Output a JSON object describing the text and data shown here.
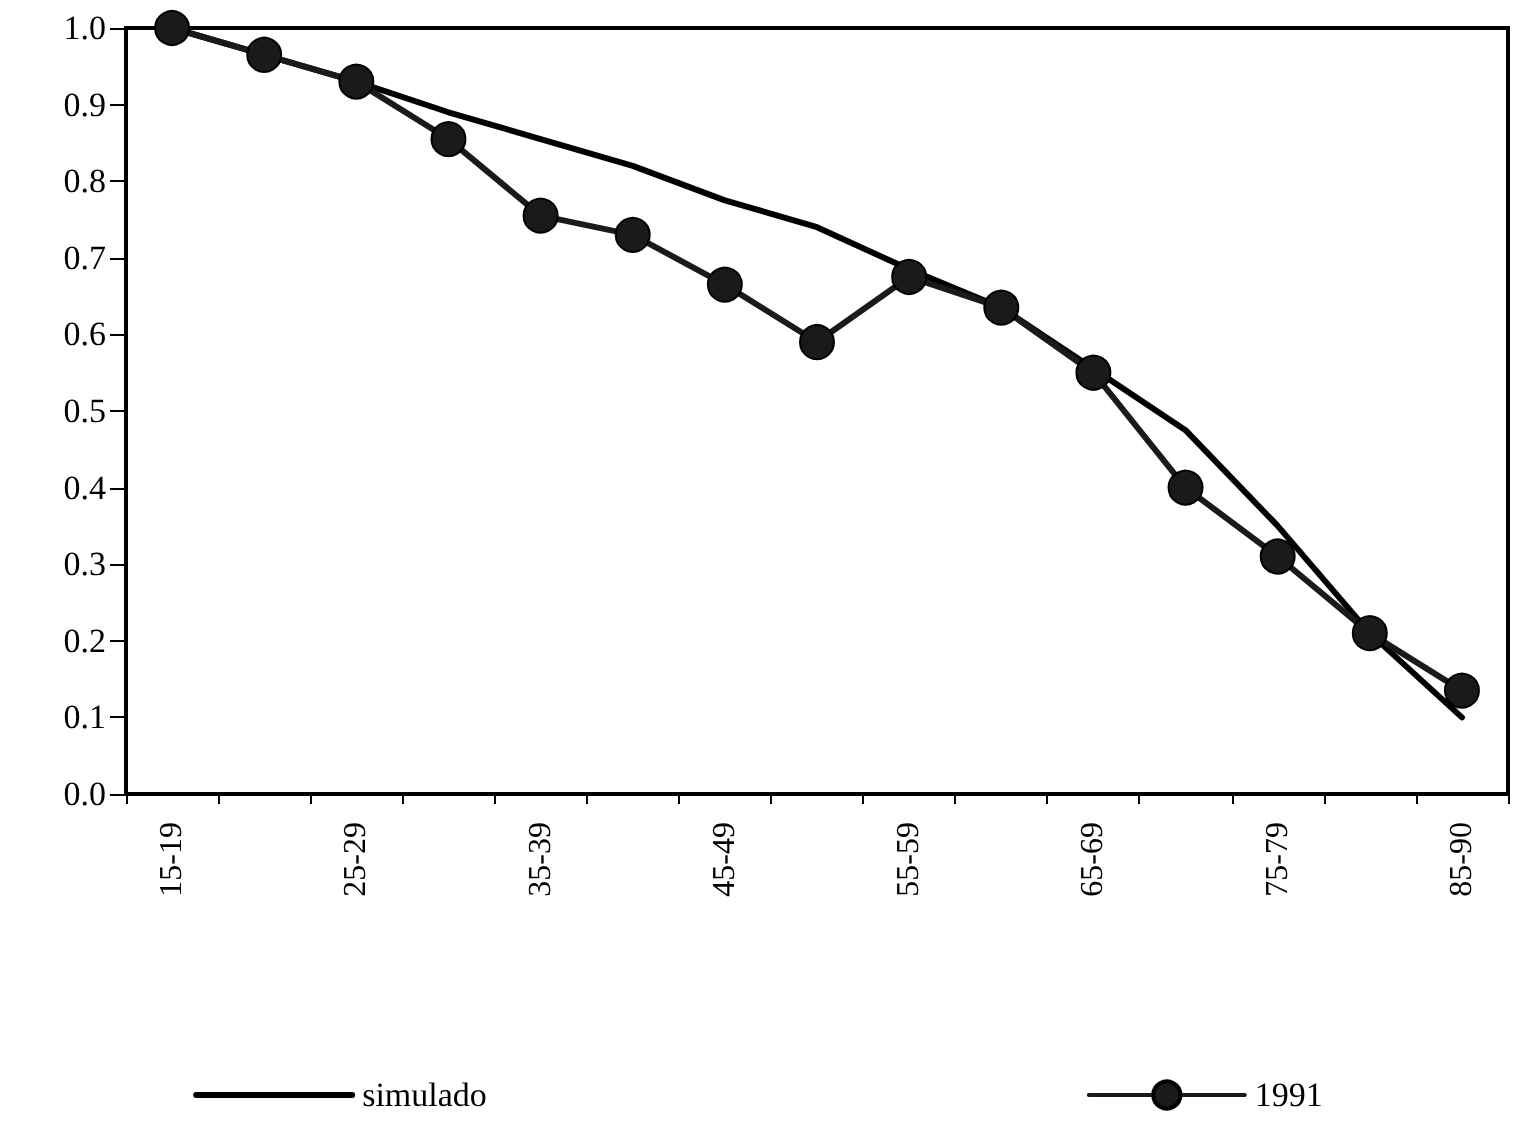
{
  "chart_data": {
    "type": "line",
    "categories": [
      "15-19",
      null,
      "25-29",
      null,
      "35-39",
      null,
      "45-49",
      null,
      "55-59",
      null,
      "65-69",
      null,
      "75-79",
      null,
      "85-90"
    ],
    "series": [
      {
        "name": "simulado",
        "color": "#000000",
        "marker": "none",
        "values": [
          1.0,
          0.965,
          0.93,
          0.89,
          0.855,
          0.82,
          0.775,
          0.74,
          0.685,
          0.635,
          0.555,
          0.475,
          0.35,
          0.21,
          0.1
        ]
      },
      {
        "name": "1991",
        "color": "#1a1a1a",
        "marker": "circle",
        "values": [
          1.0,
          0.965,
          0.93,
          0.855,
          0.755,
          0.73,
          0.665,
          0.59,
          0.675,
          0.635,
          0.55,
          0.4,
          0.31,
          0.21,
          0.135
        ]
      }
    ],
    "ylim": [
      0,
      1
    ],
    "yticks": [
      {
        "value": 0,
        "label": "0.0"
      },
      {
        "value": 0.1,
        "label": "0.1"
      },
      {
        "value": 0.2,
        "label": "0.2"
      },
      {
        "value": 0.3,
        "label": "0.3"
      },
      {
        "value": 0.4,
        "label": "0.4"
      },
      {
        "value": 0.5,
        "label": "0.5"
      },
      {
        "value": 0.6,
        "label": "0.6"
      },
      {
        "value": 0.7,
        "label": "0.7"
      },
      {
        "value": 0.8,
        "label": "0.8"
      },
      {
        "value": 0.9,
        "label": "0.9"
      },
      {
        "value": 1,
        "label": "1.0"
      }
    ],
    "grid": false,
    "legend": "bottom",
    "line_style": "solid"
  }
}
